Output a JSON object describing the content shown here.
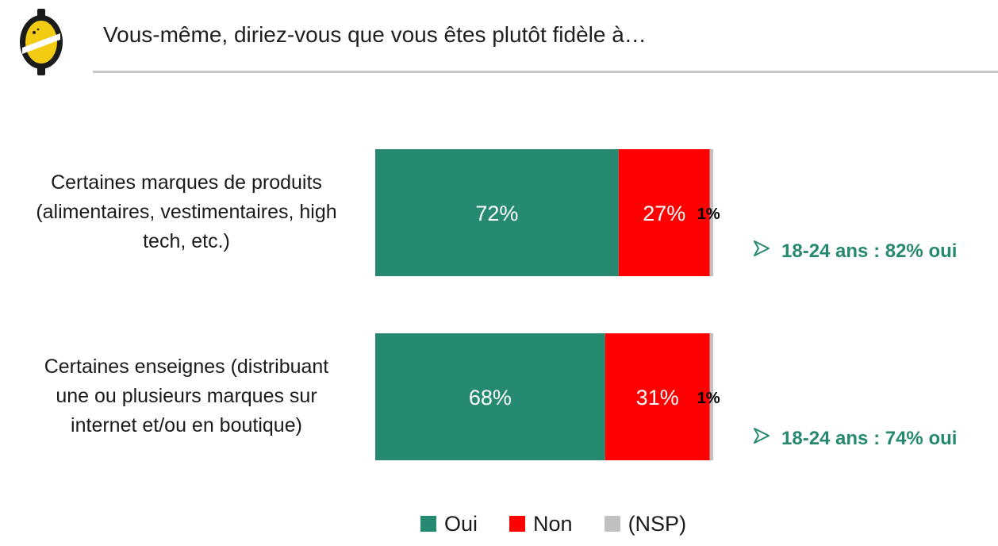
{
  "header": {
    "title": "Vous-même, diriez-vous que vous êtes plutôt fidèle à…"
  },
  "colors": {
    "oui": "#268a72",
    "non": "#ff0000",
    "nsp": "#c0c0c0",
    "accent": "#26896f"
  },
  "icons": {
    "logo": "lemon-logo-icon",
    "arrow": "arrow-right-icon"
  },
  "chart_data": {
    "type": "bar",
    "orientation": "horizontal",
    "stacked": true,
    "title": "Vous-même, diriez-vous que vous êtes plutôt fidèle à…",
    "categories": [
      "Certaines marques de produits (alimentaires, vestimentaires, high tech, etc.)",
      "Certaines enseignes (distribuant une ou plusieurs marques sur internet et/ou en boutique)"
    ],
    "category_lines": [
      [
        "Certaines marques de produits",
        "(alimentaires, vestimentaires, high",
        "tech, etc.)"
      ],
      [
        "Certaines enseignes (distribuant",
        "une ou plusieurs marques sur",
        "internet et/ou en boutique)"
      ]
    ],
    "series": [
      {
        "name": "Oui",
        "values": [
          72,
          68
        ],
        "labels": [
          "72%",
          "68%"
        ]
      },
      {
        "name": "Non",
        "values": [
          27,
          31
        ],
        "labels": [
          "27%",
          "31%"
        ]
      },
      {
        "name": "(NSP)",
        "values": [
          1,
          1
        ],
        "labels": [
          "1%",
          "1%"
        ]
      }
    ],
    "xlim": [
      0,
      100
    ],
    "grid": false,
    "legend": "bottom",
    "annotations": [
      "18-24 ans : 82% oui",
      "18-24 ans : 74% oui"
    ]
  }
}
